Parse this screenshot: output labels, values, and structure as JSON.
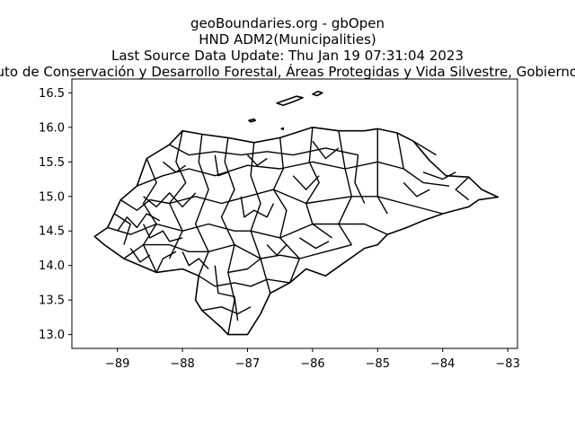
{
  "title": {
    "line1": "geoBoundaries.org - gbOpen",
    "line2": "HND ADM2(Municipalities)",
    "line3": "Last Source Data Update: Thu Jan 19 07:31:04 2023",
    "line4": "Source: Instituto de Conservación y Desarrollo Forestal, Áreas Protegidas y Vida Silvestre, Gobierno de Honduras"
  },
  "chart_data": {
    "type": "map",
    "xlim": [
      -89.7,
      -82.85
    ],
    "ylim": [
      12.8,
      16.7
    ],
    "x_ticks": [
      -89,
      -88,
      -87,
      -86,
      -85,
      -84,
      -83
    ],
    "x_tick_labels": [
      "−89",
      "−88",
      "−87",
      "−86",
      "−85",
      "−84",
      "−83"
    ],
    "y_ticks": [
      13.0,
      13.5,
      14.0,
      14.5,
      15.0,
      15.5,
      16.0,
      16.5
    ],
    "y_tick_labels": [
      "13.0",
      "13.5",
      "14.0",
      "14.5",
      "15.0",
      "15.5",
      "16.0",
      "16.5"
    ],
    "outline": [
      [
        -89.35,
        14.42
      ],
      [
        -89.15,
        14.55
      ],
      [
        -89.05,
        14.75
      ],
      [
        -88.95,
        14.95
      ],
      [
        -88.7,
        15.15
      ],
      [
        -88.55,
        15.55
      ],
      [
        -88.2,
        15.75
      ],
      [
        -88.0,
        15.95
      ],
      [
        -87.7,
        15.9
      ],
      [
        -87.3,
        15.85
      ],
      [
        -86.9,
        15.78
      ],
      [
        -86.5,
        15.85
      ],
      [
        -86.0,
        16.0
      ],
      [
        -85.6,
        15.95
      ],
      [
        -85.2,
        15.95
      ],
      [
        -85.0,
        15.98
      ],
      [
        -84.7,
        15.92
      ],
      [
        -84.45,
        15.8
      ],
      [
        -84.2,
        15.52
      ],
      [
        -83.95,
        15.3
      ],
      [
        -83.6,
        15.28
      ],
      [
        -83.4,
        15.1
      ],
      [
        -83.15,
        14.99
      ],
      [
        -83.45,
        14.95
      ],
      [
        -83.6,
        14.85
      ],
      [
        -84.0,
        14.75
      ],
      [
        -84.3,
        14.65
      ],
      [
        -84.55,
        14.55
      ],
      [
        -84.85,
        14.45
      ],
      [
        -85.0,
        14.3
      ],
      [
        -85.2,
        14.25
      ],
      [
        -85.5,
        14.05
      ],
      [
        -85.8,
        13.85
      ],
      [
        -86.1,
        13.95
      ],
      [
        -86.35,
        13.75
      ],
      [
        -86.65,
        13.6
      ],
      [
        -86.8,
        13.3
      ],
      [
        -87.0,
        13.0
      ],
      [
        -87.3,
        13.0
      ],
      [
        -87.4,
        13.1
      ],
      [
        -87.7,
        13.35
      ],
      [
        -87.8,
        13.5
      ],
      [
        -87.75,
        13.85
      ],
      [
        -88.0,
        13.95
      ],
      [
        -88.4,
        13.9
      ],
      [
        -88.9,
        14.1
      ],
      [
        -89.2,
        14.3
      ],
      [
        -89.35,
        14.42
      ]
    ],
    "internal_borders": [
      [
        [
          -85.0,
          15.98
        ],
        [
          -85.0,
          15.0
        ]
      ],
      [
        [
          -85.0,
          15.0
        ],
        [
          -84.85,
          14.75
        ]
      ],
      [
        [
          -84.7,
          15.92
        ],
        [
          -84.6,
          15.4
        ],
        [
          -84.3,
          15.2
        ],
        [
          -83.9,
          15.15
        ]
      ],
      [
        [
          -84.45,
          15.8
        ],
        [
          -84.1,
          15.6
        ]
      ],
      [
        [
          -85.6,
          15.95
        ],
        [
          -85.5,
          15.4
        ],
        [
          -85.4,
          15.0
        ],
        [
          -85.6,
          14.6
        ],
        [
          -85.4,
          14.3
        ]
      ],
      [
        [
          -86.0,
          16.0
        ],
        [
          -86.05,
          15.5
        ],
        [
          -85.9,
          15.2
        ],
        [
          -86.1,
          14.9
        ],
        [
          -86.0,
          14.6
        ],
        [
          -85.7,
          14.4
        ]
      ],
      [
        [
          -86.5,
          15.85
        ],
        [
          -86.45,
          15.4
        ],
        [
          -86.6,
          15.1
        ],
        [
          -86.4,
          14.8
        ],
        [
          -86.5,
          14.4
        ],
        [
          -86.2,
          14.1
        ],
        [
          -86.35,
          13.75
        ]
      ],
      [
        [
          -86.9,
          15.78
        ],
        [
          -86.95,
          15.3
        ],
        [
          -86.8,
          14.9
        ],
        [
          -86.95,
          14.5
        ],
        [
          -86.8,
          14.1
        ],
        [
          -86.65,
          13.6
        ]
      ],
      [
        [
          -87.3,
          15.85
        ],
        [
          -87.35,
          15.5
        ],
        [
          -87.2,
          15.1
        ],
        [
          -87.4,
          14.7
        ],
        [
          -87.2,
          14.3
        ],
        [
          -87.3,
          13.9
        ],
        [
          -87.2,
          13.5
        ],
        [
          -87.3,
          13.0
        ]
      ],
      [
        [
          -87.7,
          15.9
        ],
        [
          -87.75,
          15.5
        ],
        [
          -87.6,
          15.1
        ],
        [
          -87.8,
          14.6
        ],
        [
          -87.6,
          14.2
        ],
        [
          -87.75,
          13.85
        ]
      ],
      [
        [
          -88.0,
          15.95
        ],
        [
          -88.1,
          15.5
        ],
        [
          -87.95,
          15.2
        ],
        [
          -88.2,
          14.9
        ],
        [
          -88.0,
          14.5
        ],
        [
          -88.2,
          14.1
        ]
      ],
      [
        [
          -88.55,
          15.55
        ],
        [
          -88.4,
          15.2
        ],
        [
          -88.6,
          14.9
        ],
        [
          -88.4,
          14.6
        ],
        [
          -88.6,
          14.3
        ],
        [
          -88.4,
          13.9
        ]
      ],
      [
        [
          -89.05,
          14.75
        ],
        [
          -88.8,
          14.6
        ],
        [
          -88.9,
          14.3
        ]
      ],
      [
        [
          -88.95,
          14.95
        ],
        [
          -88.7,
          14.8
        ],
        [
          -88.5,
          14.95
        ],
        [
          -88.2,
          14.9
        ],
        [
          -87.8,
          15.0
        ],
        [
          -87.4,
          14.9
        ],
        [
          -87.0,
          15.0
        ],
        [
          -86.6,
          15.1
        ],
        [
          -86.1,
          14.9
        ],
        [
          -85.4,
          15.0
        ],
        [
          -85.0,
          15.0
        ],
        [
          -84.6,
          14.9
        ],
        [
          -84.0,
          14.75
        ]
      ],
      [
        [
          -89.15,
          14.55
        ],
        [
          -88.8,
          14.45
        ],
        [
          -88.4,
          14.6
        ],
        [
          -88.0,
          14.5
        ],
        [
          -87.6,
          14.6
        ],
        [
          -87.2,
          14.5
        ],
        [
          -86.95,
          14.5
        ],
        [
          -86.5,
          14.4
        ],
        [
          -86.0,
          14.6
        ],
        [
          -85.6,
          14.6
        ],
        [
          -85.2,
          14.6
        ],
        [
          -84.85,
          14.45
        ]
      ],
      [
        [
          -88.9,
          14.1
        ],
        [
          -88.6,
          14.3
        ],
        [
          -88.2,
          14.3
        ],
        [
          -87.9,
          14.2
        ],
        [
          -87.6,
          14.2
        ],
        [
          -87.2,
          14.3
        ],
        [
          -86.8,
          14.1
        ],
        [
          -86.5,
          14.15
        ],
        [
          -86.2,
          14.1
        ],
        [
          -85.8,
          14.2
        ],
        [
          -85.4,
          14.3
        ]
      ],
      [
        [
          -88.7,
          15.15
        ],
        [
          -88.3,
          15.3
        ],
        [
          -87.9,
          15.4
        ],
        [
          -87.5,
          15.3
        ],
        [
          -87.0,
          15.45
        ],
        [
          -86.5,
          15.4
        ],
        [
          -86.0,
          15.5
        ],
        [
          -85.5,
          15.4
        ],
        [
          -85.0,
          15.5
        ],
        [
          -84.6,
          15.4
        ]
      ],
      [
        [
          -88.2,
          15.75
        ],
        [
          -87.9,
          15.6
        ],
        [
          -87.5,
          15.65
        ],
        [
          -87.1,
          15.6
        ],
        [
          -86.7,
          15.65
        ],
        [
          -86.3,
          15.6
        ],
        [
          -85.8,
          15.7
        ],
        [
          -85.3,
          15.6
        ]
      ],
      [
        [
          -87.75,
          13.85
        ],
        [
          -87.5,
          13.7
        ],
        [
          -87.2,
          13.75
        ],
        [
          -86.95,
          13.7
        ],
        [
          -86.7,
          13.8
        ],
        [
          -86.35,
          13.75
        ]
      ],
      [
        [
          -87.7,
          13.35
        ],
        [
          -87.4,
          13.4
        ],
        [
          -87.15,
          13.3
        ],
        [
          -86.95,
          13.4
        ]
      ],
      [
        [
          -87.3,
          13.9
        ],
        [
          -87.0,
          13.95
        ],
        [
          -86.8,
          14.1
        ]
      ],
      [
        [
          -88.4,
          13.9
        ],
        [
          -88.3,
          14.1
        ],
        [
          -88.1,
          14.2
        ]
      ],
      [
        [
          -89.0,
          14.5
        ],
        [
          -88.85,
          14.7
        ],
        [
          -88.7,
          14.55
        ],
        [
          -88.55,
          14.75
        ],
        [
          -88.35,
          14.65
        ]
      ],
      [
        [
          -88.6,
          15.0
        ],
        [
          -88.4,
          14.85
        ],
        [
          -88.2,
          15.05
        ],
        [
          -88.0,
          14.85
        ],
        [
          -87.8,
          15.05
        ]
      ],
      [
        [
          -88.0,
          14.2
        ],
        [
          -87.9,
          14.0
        ],
        [
          -87.75,
          14.1
        ],
        [
          -87.6,
          13.95
        ]
      ],
      [
        [
          -87.5,
          14.0
        ],
        [
          -87.45,
          13.6
        ],
        [
          -87.2,
          13.55
        ],
        [
          -87.15,
          13.2
        ]
      ],
      [
        [
          -88.6,
          14.6
        ],
        [
          -88.5,
          14.4
        ],
        [
          -88.3,
          14.5
        ],
        [
          -88.2,
          14.35
        ],
        [
          -88.0,
          14.4
        ]
      ],
      [
        [
          -87.1,
          15.0
        ],
        [
          -87.05,
          14.7
        ],
        [
          -86.9,
          14.8
        ],
        [
          -86.7,
          14.7
        ],
        [
          -86.6,
          14.9
        ]
      ],
      [
        [
          -86.0,
          15.8
        ],
        [
          -85.8,
          15.55
        ],
        [
          -85.6,
          15.7
        ]
      ],
      [
        [
          -86.3,
          15.3
        ],
        [
          -86.1,
          15.1
        ],
        [
          -85.9,
          15.3
        ]
      ],
      [
        [
          -87.5,
          15.6
        ],
        [
          -87.45,
          15.3
        ],
        [
          -87.3,
          15.35
        ]
      ],
      [
        [
          -88.3,
          15.5
        ],
        [
          -88.1,
          15.35
        ],
        [
          -87.95,
          15.45
        ]
      ],
      [
        [
          -84.3,
          15.35
        ],
        [
          -84.0,
          15.25
        ],
        [
          -83.8,
          15.35
        ]
      ],
      [
        [
          -84.6,
          15.2
        ],
        [
          -84.4,
          15.0
        ],
        [
          -84.2,
          15.1
        ]
      ],
      [
        [
          -86.2,
          14.4
        ],
        [
          -85.95,
          14.25
        ],
        [
          -85.75,
          14.35
        ]
      ],
      [
        [
          -86.7,
          14.3
        ],
        [
          -86.55,
          14.15
        ],
        [
          -86.4,
          14.3
        ]
      ],
      [
        [
          -88.8,
          14.25
        ],
        [
          -88.65,
          14.05
        ],
        [
          -88.5,
          14.15
        ]
      ],
      [
        [
          -87.0,
          15.6
        ],
        [
          -86.85,
          15.45
        ],
        [
          -86.7,
          15.55
        ]
      ],
      [
        [
          -85.3,
          15.6
        ],
        [
          -85.35,
          15.2
        ],
        [
          -85.2,
          14.9
        ]
      ],
      [
        [
          -83.6,
          15.28
        ],
        [
          -83.8,
          15.1
        ],
        [
          -83.6,
          14.95
        ]
      ]
    ],
    "islands": [
      [
        [
          -86.55,
          16.35
        ],
        [
          -86.4,
          16.4
        ],
        [
          -86.25,
          16.45
        ],
        [
          -86.15,
          16.43
        ],
        [
          -86.3,
          16.37
        ],
        [
          -86.45,
          16.32
        ],
        [
          -86.55,
          16.35
        ]
      ],
      [
        [
          -86.0,
          16.48
        ],
        [
          -85.92,
          16.52
        ],
        [
          -85.85,
          16.5
        ],
        [
          -85.93,
          16.46
        ],
        [
          -86.0,
          16.48
        ]
      ],
      [
        [
          -86.98,
          16.1
        ],
        [
          -86.9,
          16.12
        ],
        [
          -86.88,
          16.1
        ],
        [
          -86.95,
          16.08
        ],
        [
          -86.98,
          16.1
        ]
      ],
      [
        [
          -86.48,
          15.98
        ],
        [
          -86.45,
          15.99
        ],
        [
          -86.45,
          15.97
        ],
        [
          -86.48,
          15.98
        ]
      ]
    ]
  }
}
